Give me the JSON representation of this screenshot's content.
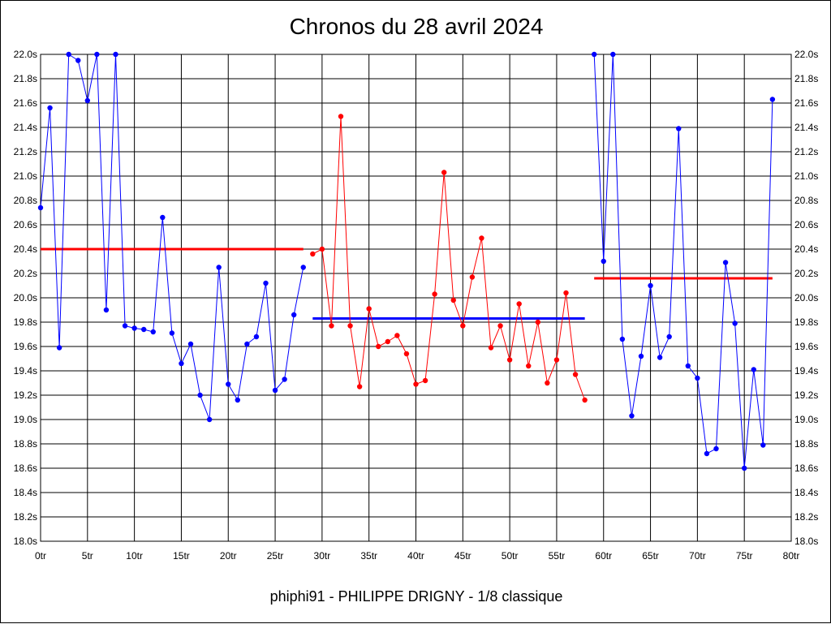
{
  "title": "Chronos du 28 avril 2024",
  "subtitle": "phiphi91 - PHILIPPE DRIGNY - 1/8 classique",
  "colors": {
    "series_blue": "#0000ff",
    "series_red": "#ff0000",
    "grid": "#000000",
    "background": "#ffffff"
  },
  "chart_data": {
    "type": "line",
    "title": "Chronos du 28 avril 2024",
    "grid": true,
    "xlim": [
      0,
      80
    ],
    "ylim": [
      18.0,
      22.0
    ],
    "x_ticks": [
      0,
      5,
      10,
      15,
      20,
      25,
      30,
      35,
      40,
      45,
      50,
      55,
      60,
      65,
      70,
      75,
      80
    ],
    "x_tick_labels": [
      "0tr",
      "5tr",
      "10tr",
      "15tr",
      "20tr",
      "25tr",
      "30tr",
      "35tr",
      "40tr",
      "45tr",
      "50tr",
      "55tr",
      "60tr",
      "65tr",
      "70tr",
      "75tr",
      "80tr"
    ],
    "y_ticks": [
      18.0,
      18.2,
      18.4,
      18.6,
      18.8,
      19.0,
      19.2,
      19.4,
      19.6,
      19.8,
      20.0,
      20.2,
      20.4,
      20.6,
      20.8,
      21.0,
      21.2,
      21.4,
      21.6,
      21.8,
      22.0
    ],
    "y_tick_labels": [
      "18.0s",
      "18.2s",
      "18.4s",
      "18.6s",
      "18.8s",
      "19.0s",
      "19.2s",
      "19.4s",
      "19.6s",
      "19.8s",
      "20.0s",
      "20.2s",
      "20.4s",
      "20.6s",
      "20.8s",
      "21.0s",
      "21.2s",
      "21.4s",
      "21.6s",
      "21.8s",
      "22.0s"
    ],
    "series": [
      {
        "color": "#0000ff",
        "x": [
          0,
          1,
          2,
          3,
          4,
          5,
          6,
          7,
          8,
          9,
          10,
          11,
          12,
          13,
          14,
          15,
          16,
          17,
          18,
          19,
          20,
          21,
          22,
          23,
          24,
          25,
          26,
          27,
          28
        ],
        "values": [
          20.74,
          21.56,
          19.59,
          22.0,
          21.95,
          21.62,
          22.0,
          19.9,
          22.0,
          19.77,
          19.75,
          19.74,
          19.72,
          20.66,
          19.71,
          19.46,
          19.62,
          19.2,
          19.0,
          20.25,
          19.29,
          19.16,
          19.62,
          19.68,
          20.12,
          19.24,
          19.33,
          19.86,
          20.25
        ]
      },
      {
        "color": "#ff0000",
        "x": [
          29,
          30,
          31,
          32,
          33,
          34,
          35,
          36,
          37,
          38,
          39,
          40,
          41,
          42,
          43,
          44,
          45,
          46,
          47,
          48,
          49,
          50,
          51,
          52,
          53,
          54,
          55,
          56,
          57,
          58
        ],
        "values": [
          20.36,
          20.4,
          19.77,
          21.49,
          19.77,
          19.27,
          19.91,
          19.6,
          19.64,
          19.69,
          19.54,
          19.29,
          19.32,
          20.03,
          21.03,
          19.98,
          19.77,
          20.17,
          20.49,
          19.59,
          19.77,
          19.49,
          19.95,
          19.44,
          19.8,
          19.3,
          19.49,
          20.04,
          19.37,
          19.16
        ]
      },
      {
        "color": "#0000ff",
        "x": [
          59,
          60,
          61,
          62,
          63,
          64,
          65,
          66,
          67,
          68,
          69,
          70,
          71,
          72,
          73,
          74,
          75,
          76,
          77,
          78
        ],
        "values": [
          22.0,
          20.3,
          22.0,
          19.66,
          19.03,
          19.52,
          20.1,
          19.51,
          19.68,
          21.39,
          19.44,
          19.34,
          18.72,
          18.76,
          20.29,
          19.79,
          18.6,
          19.41,
          18.79,
          21.63
        ]
      }
    ],
    "reference_lines": [
      {
        "color": "#ff0000",
        "x": [
          0,
          28
        ],
        "value": 20.4
      },
      {
        "color": "#0000ff",
        "x": [
          29,
          58
        ],
        "value": 19.83
      },
      {
        "color": "#ff0000",
        "x": [
          59,
          78
        ],
        "value": 20.16
      }
    ]
  }
}
